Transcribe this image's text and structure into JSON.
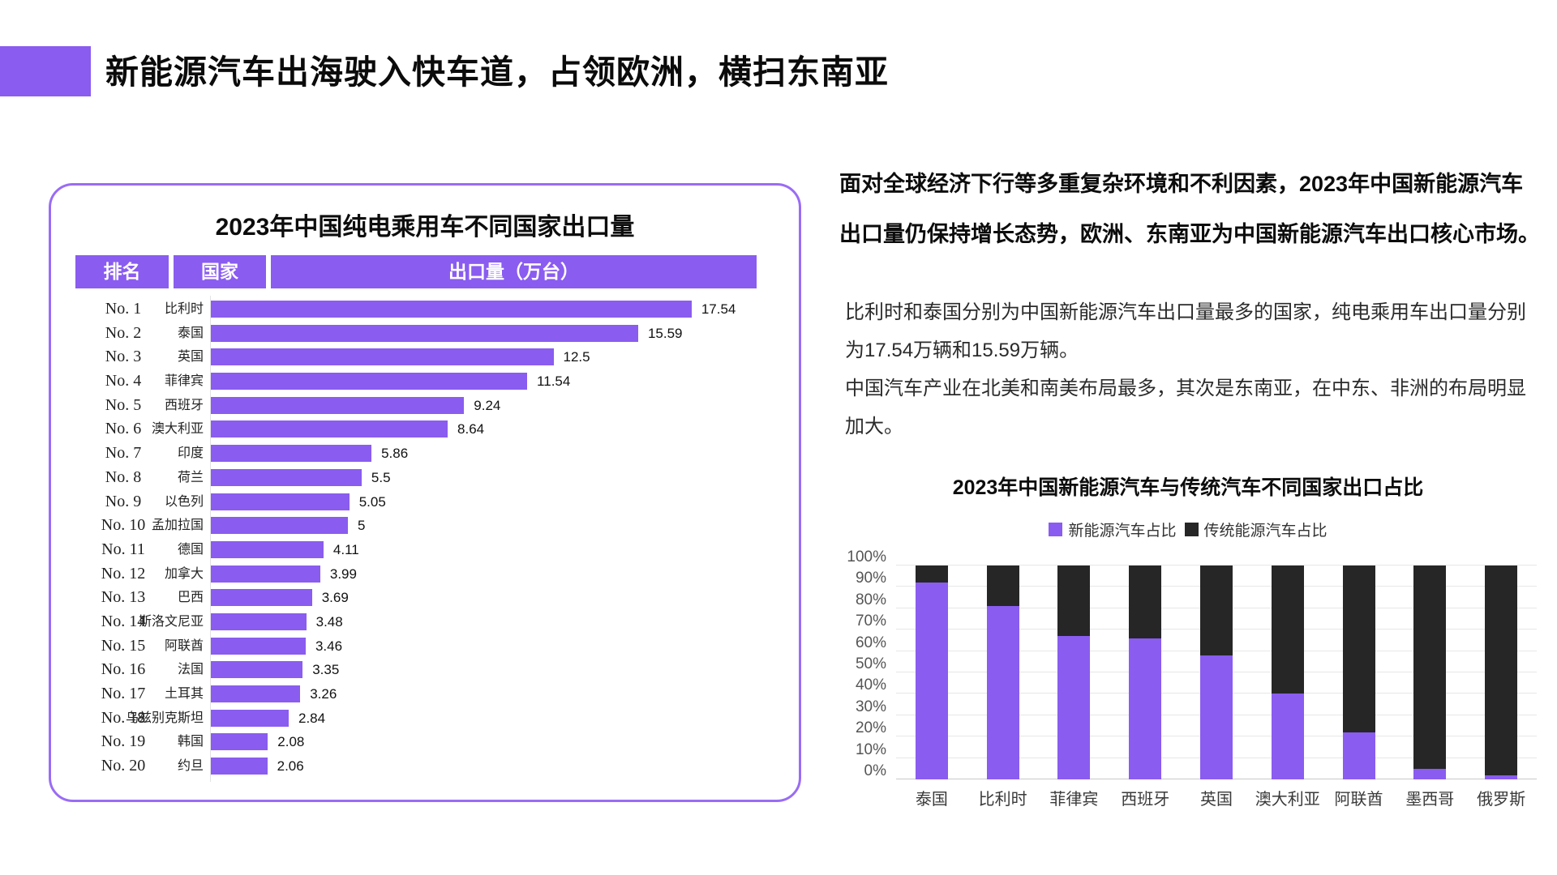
{
  "page_title": "新能源汽车出海驶入快车道，占领欧洲，横扫东南亚",
  "colors": {
    "accent": "#8a5cf0",
    "dark": "#262626",
    "card_border": "#9a6cf5"
  },
  "left_panel": {
    "title": "2023年中国纯电乘用车不同国家出口量",
    "columns": [
      "排名",
      "国家",
      "出口量（万台）"
    ]
  },
  "right_panel": {
    "paragraph_bold": "面对全球经济下行等多重复杂环境和不利因素，2023年中国新能源汽车出口量仍保持增长态势，欧洲、东南亚为中国新能源汽车出口核心市场。",
    "paragraphs": [
      "比利时和泰国分别为中国新能源汽车出口量最多的国家，纯电乘用车出口量分别为17.54万辆和15.59万辆。",
      "中国汽车产业在北美和南美布局最多，其次是东南亚，在中东、非洲的布局明显加大。"
    ]
  },
  "chart_data": [
    {
      "type": "bar",
      "orientation": "horizontal",
      "title": "2023年中国纯电乘用车不同国家出口量",
      "xlabel": "出口量（万台）",
      "xlim": [
        0,
        18
      ],
      "ranks": [
        "No. 1",
        "No. 2",
        "No. 3",
        "No. 4",
        "No. 5",
        "No. 6",
        "No. 7",
        "No. 8",
        "No. 9",
        "No. 10",
        "No. 11",
        "No. 12",
        "No. 13",
        "No. 14",
        "No. 15",
        "No. 16",
        "No. 17",
        "No. 18",
        "No. 19",
        "No. 20"
      ],
      "categories": [
        "比利时",
        "泰国",
        "英国",
        "菲律宾",
        "西班牙",
        "澳大利亚",
        "印度",
        "荷兰",
        "以色列",
        "孟加拉国",
        "德国",
        "加拿大",
        "巴西",
        "斯洛文尼亚",
        "阿联酋",
        "法国",
        "土耳其",
        "乌兹别克斯坦",
        "韩国",
        "约旦"
      ],
      "values": [
        17.54,
        15.59,
        12.5,
        11.54,
        9.24,
        8.64,
        5.86,
        5.5,
        5.05,
        5,
        4.11,
        3.99,
        3.69,
        3.48,
        3.46,
        3.35,
        3.26,
        2.84,
        2.08,
        2.06
      ],
      "bar_color": "#8a5cf0",
      "grid": false
    },
    {
      "type": "bar",
      "stacked": true,
      "unit": "%",
      "title": "2023年中国新能源汽车与传统汽车不同国家出口占比",
      "categories": [
        "泰国",
        "比利时",
        "菲律宾",
        "西班牙",
        "英国",
        "澳大利亚",
        "阿联酋",
        "墨西哥",
        "俄罗斯"
      ],
      "series": [
        {
          "name": "新能源汽车占比",
          "color": "#8a5cf0",
          "values": [
            92,
            81,
            67,
            66,
            58,
            40,
            22,
            5,
            2
          ]
        },
        {
          "name": "传统能源汽车占比",
          "color": "#262626",
          "values": [
            8,
            19,
            33,
            34,
            42,
            60,
            78,
            95,
            98
          ]
        }
      ],
      "ylim": [
        0,
        100
      ],
      "yticks": [
        "0%",
        "10%",
        "20%",
        "30%",
        "40%",
        "50%",
        "60%",
        "70%",
        "80%",
        "90%",
        "100%"
      ],
      "legend_position": "top",
      "grid": true
    }
  ]
}
